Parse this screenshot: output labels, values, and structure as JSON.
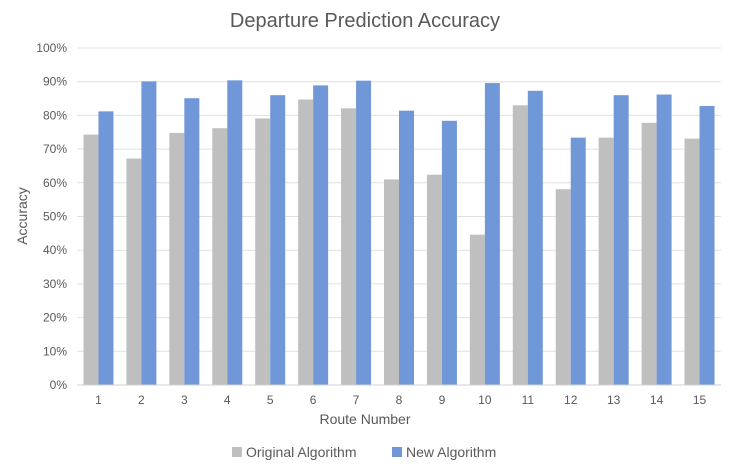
{
  "chart_data": {
    "type": "bar",
    "title": "Departure Prediction Accuracy",
    "xlabel": "Route Number",
    "ylabel": "Accuracy",
    "categories": [
      "1",
      "2",
      "3",
      "4",
      "5",
      "6",
      "7",
      "8",
      "9",
      "10",
      "11",
      "12",
      "13",
      "14",
      "15"
    ],
    "series": [
      {
        "name": "Original Algorithm",
        "color": "#bfbfbf",
        "values": [
          74.3,
          67.2,
          74.8,
          76.2,
          79.1,
          84.7,
          82.1,
          61.0,
          62.4,
          44.6,
          83.0,
          58.1,
          73.4,
          77.8,
          73.1
        ]
      },
      {
        "name": "New Algorithm",
        "color": "#7098d8",
        "values": [
          81.2,
          90.1,
          85.1,
          90.4,
          86.0,
          88.9,
          90.3,
          81.4,
          78.4,
          89.6,
          87.3,
          73.4,
          86.0,
          86.2,
          82.8
        ]
      }
    ],
    "ylim": [
      0,
      100
    ],
    "yticks": [
      0,
      10,
      20,
      30,
      40,
      50,
      60,
      70,
      80,
      90,
      100
    ],
    "ytick_suffix": "%",
    "grid": true,
    "legend": "bottom-center"
  }
}
